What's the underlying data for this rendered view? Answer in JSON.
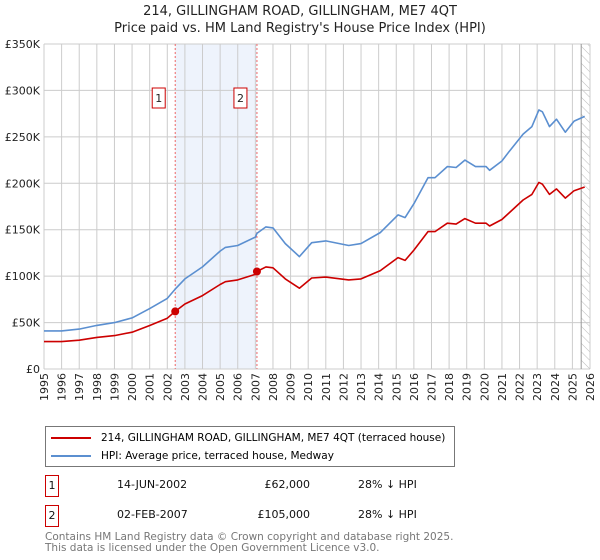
{
  "chart_data": {
    "type": "line",
    "title": "214, GILLINGHAM ROAD, GILLINGHAM, ME7 4QT",
    "subtitle": "Price paid vs. HM Land Registry's House Price Index (HPI)",
    "xlim": [
      1995,
      2026
    ],
    "ylim": [
      0,
      350000
    ],
    "y_ticks": [
      0,
      50000,
      100000,
      150000,
      200000,
      250000,
      300000,
      350000
    ],
    "y_tick_labels": [
      "£0",
      "£50K",
      "£100K",
      "£150K",
      "£200K",
      "£250K",
      "£300K",
      "£350K"
    ],
    "x_ticks": [
      "1995",
      "1996",
      "1997",
      "1998",
      "1999",
      "2000",
      "2001",
      "2002",
      "2003",
      "2004",
      "2005",
      "2006",
      "2007",
      "2008",
      "2009",
      "2010",
      "2011",
      "2012",
      "2013",
      "2014",
      "2015",
      "2016",
      "2017",
      "2018",
      "2019",
      "2020",
      "2021",
      "2022",
      "2023",
      "2024",
      "2025",
      "2026"
    ],
    "grid": true,
    "shaded_range": [
      2002.45,
      2007.09
    ],
    "forecast_hatch_from": 2025.5,
    "x": [
      1995,
      1996,
      1997,
      1998,
      1999,
      2000,
      2001,
      2002,
      2002.45,
      2003,
      2004,
      2005,
      2005.3,
      2006,
      2007,
      2007.09,
      2007.6,
      2008,
      2008.7,
      2009.5,
      2010.2,
      2011,
      2012.3,
      2013,
      2014.1,
      2015.1,
      2015.5,
      2016,
      2016.8,
      2017.2,
      2017.9,
      2018.4,
      2018.9,
      2019.5,
      2020.1,
      2020.3,
      2021,
      2021.4,
      2022.2,
      2022.7,
      2023.1,
      2023.3,
      2023.7,
      2024.1,
      2024.6,
      2025.1,
      2025.7
    ],
    "series": [
      {
        "name": "214, GILLINGHAM ROAD, GILLINGHAM, ME7 4QT (terraced house)",
        "color": "#cc0000",
        "values": [
          29.5,
          29.5,
          31,
          34,
          36,
          39.6,
          46.8,
          54.7,
          62,
          70,
          79,
          91,
          94,
          96,
          102,
          105,
          110,
          109,
          97,
          87,
          98,
          99,
          96,
          97,
          106,
          120,
          117,
          128,
          148,
          148,
          157,
          156,
          162,
          157,
          157,
          154,
          161,
          168,
          182,
          188,
          201,
          199,
          188,
          194,
          184,
          192,
          196
        ]
      },
      {
        "name": "HPI: Average price, terraced house, Medway",
        "color": "#5b8fd0",
        "values": [
          41,
          41,
          43,
          47,
          50,
          55,
          65,
          76,
          86,
          97,
          110,
          127,
          131,
          133,
          142,
          146,
          153,
          152,
          135,
          121,
          136,
          138,
          133,
          135,
          147,
          166,
          163,
          178,
          206,
          206,
          218,
          217,
          225,
          218,
          218,
          214,
          224,
          234,
          253,
          261,
          279,
          277,
          261,
          269,
          255,
          267,
          272
        ]
      }
    ],
    "value_unit": "thousand GBP",
    "sales": [
      {
        "label": "1",
        "x": 2002.45,
        "value": 62000,
        "date": "14-JUN-2002",
        "price": "£62,000",
        "hpi": "28% ↓ HPI"
      },
      {
        "label": "2",
        "x": 2007.09,
        "value": 105000,
        "date": "02-FEB-2007",
        "price": "£105,000",
        "hpi": "28% ↓ HPI"
      }
    ]
  },
  "legend": {
    "items": [
      {
        "label": "214, GILLINGHAM ROAD, GILLINGHAM, ME7 4QT (terraced house)",
        "color": "#cc0000"
      },
      {
        "label": "HPI: Average price, terraced house, Medway",
        "color": "#5b8fd0"
      }
    ]
  },
  "footer": {
    "line1": "Contains HM Land Registry data © Crown copyright and database right 2025.",
    "line2": "This data is licensed under the Open Government Licence v3.0."
  }
}
